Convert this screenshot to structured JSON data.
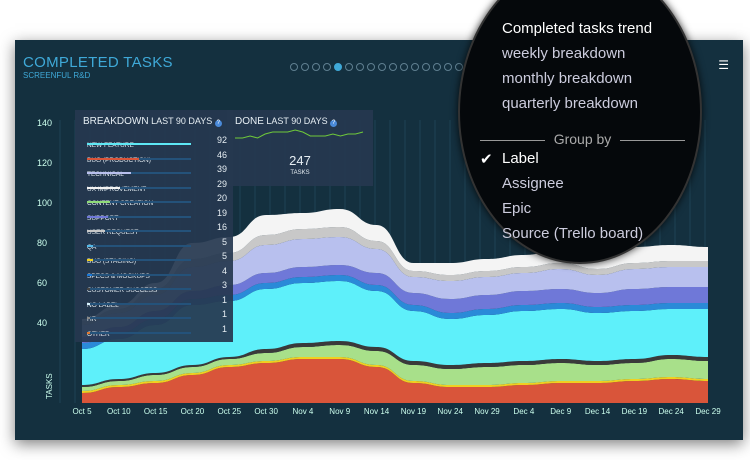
{
  "header": {
    "title": "COMPLETED TASKS",
    "subtitle": "SCREENFUL R&D",
    "page_dots": 18,
    "active_dot": 4,
    "menu_icon": "hamburger-icon"
  },
  "breakdown": {
    "title": "BREAKDOWN",
    "period": "LAST 90 DAYS",
    "help": "?",
    "items": [
      {
        "label": "NEW FEATURE",
        "value": 92,
        "color": "#5ee8f5"
      },
      {
        "label": "BUG (PRODUCTION)",
        "value": 46,
        "color": "#d9553a"
      },
      {
        "label": "TECHNICAL",
        "value": 39,
        "color": "#b8c0ee"
      },
      {
        "label": "UX IMPROVEMENT",
        "value": 29,
        "color": "#f2f2f2"
      },
      {
        "label": "CONTENT CREATION",
        "value": 20,
        "color": "#8fdc78"
      },
      {
        "label": "SUPPORT",
        "value": 19,
        "color": "#6f78d8"
      },
      {
        "label": "USER REQUEST",
        "value": 16,
        "color": "#c8c8c8"
      },
      {
        "label": "QA",
        "value": 5,
        "color": "#52b7e8"
      },
      {
        "label": "BUG (STAGING)",
        "value": 5,
        "color": "#f0d020"
      },
      {
        "label": "SPECS & MOCKUPS",
        "value": 4,
        "color": "#1a78d8"
      },
      {
        "label": "CUSTOMER SUCCESS",
        "value": 3,
        "color": "#444"
      },
      {
        "label": "NO LABEL",
        "value": 1,
        "color": "#d8f4ff"
      },
      {
        "label": "HR",
        "value": 1,
        "color": "#888"
      },
      {
        "label": "OTHER",
        "value": 1,
        "color": "#e07a30"
      }
    ]
  },
  "done": {
    "title": "DONE",
    "period": "LAST 90 DAYS",
    "help": "?",
    "value": "247",
    "unit": "TASKS"
  },
  "menu": {
    "items": [
      "Completed tasks trend",
      "weekly breakdown",
      "monthly breakdown",
      "quarterly breakdown"
    ],
    "group_label": "Group by",
    "group_options": [
      "Label",
      "Assignee",
      "Epic",
      "Source (Trello board)"
    ],
    "selected": "Label"
  },
  "chart_data": {
    "type": "area",
    "stacked": true,
    "ylabel": "TASKS",
    "ylim": [
      0,
      140
    ],
    "yticks": [
      40,
      60,
      80,
      100,
      120,
      140
    ],
    "x": [
      "Oct 5",
      "Oct 10",
      "Oct 15",
      "Oct 20",
      "Oct 25",
      "Oct 30",
      "Nov 4",
      "Nov 9",
      "Nov 14",
      "Nov 19",
      "Nov 24",
      "Nov 29",
      "Dec 4",
      "Dec 9",
      "Dec 14",
      "Dec 19",
      "Dec 24",
      "Dec 29"
    ],
    "series": [
      {
        "name": "BUG (PRODUCTION)",
        "color": "#d9553a",
        "values": [
          5,
          8,
          10,
          14,
          18,
          20,
          22,
          22,
          18,
          10,
          8,
          8,
          9,
          10,
          10,
          11,
          12,
          11
        ]
      },
      {
        "name": "BUG (STAGING)",
        "color": "#f0d020",
        "values": [
          1,
          1,
          1,
          1,
          1,
          1,
          1,
          1,
          1,
          1,
          1,
          1,
          1,
          1,
          1,
          1,
          1,
          1
        ]
      },
      {
        "name": "CONTENT CREATION",
        "color": "#a8e08a",
        "values": [
          2,
          2,
          3,
          3,
          3,
          4,
          5,
          6,
          7,
          8,
          8,
          9,
          9,
          9,
          8,
          8,
          9,
          9
        ]
      },
      {
        "name": "CUSTOMER SUCCESS",
        "color": "#3a3a3a",
        "values": [
          1,
          1,
          1,
          1,
          1,
          2,
          2,
          2,
          2,
          2,
          2,
          2,
          2,
          2,
          2,
          2,
          2,
          2
        ]
      },
      {
        "name": "NEW FEATURE",
        "color": "#5ef0fa",
        "values": [
          18,
          20,
          24,
          30,
          28,
          30,
          30,
          30,
          28,
          25,
          23,
          24,
          25,
          25,
          24,
          24,
          23,
          24
        ]
      },
      {
        "name": "QA",
        "color": "#2a8ad8",
        "values": [
          3,
          3,
          3,
          3,
          3,
          3,
          3,
          3,
          3,
          3,
          3,
          3,
          3,
          3,
          3,
          3,
          3,
          3
        ]
      },
      {
        "name": "SUPPORT",
        "color": "#6f78d8",
        "values": [
          3,
          3,
          4,
          4,
          5,
          5,
          5,
          5,
          6,
          6,
          7,
          7,
          7,
          7,
          7,
          8,
          8,
          8
        ]
      },
      {
        "name": "TECHNICAL",
        "color": "#b8c0ee",
        "values": [
          6,
          7,
          8,
          12,
          12,
          14,
          14,
          14,
          12,
          8,
          9,
          9,
          9,
          10,
          9,
          10,
          10,
          10
        ]
      },
      {
        "name": "USER REQUEST",
        "color": "#c8c8c8",
        "values": [
          2,
          2,
          3,
          4,
          4,
          5,
          5,
          5,
          4,
          3,
          3,
          3,
          3,
          3,
          3,
          3,
          3,
          3
        ]
      },
      {
        "name": "UX IMPROVEMENT",
        "color": "#f4f4f4",
        "values": [
          1,
          2,
          3,
          8,
          8,
          10,
          8,
          9,
          8,
          4,
          6,
          6,
          6,
          7,
          6,
          8,
          8,
          7
        ]
      }
    ]
  },
  "done_sparkline": [
    5,
    5,
    6,
    5,
    7,
    8,
    8,
    8,
    9,
    8,
    6,
    6,
    6,
    7,
    6,
    7,
    7,
    8
  ]
}
